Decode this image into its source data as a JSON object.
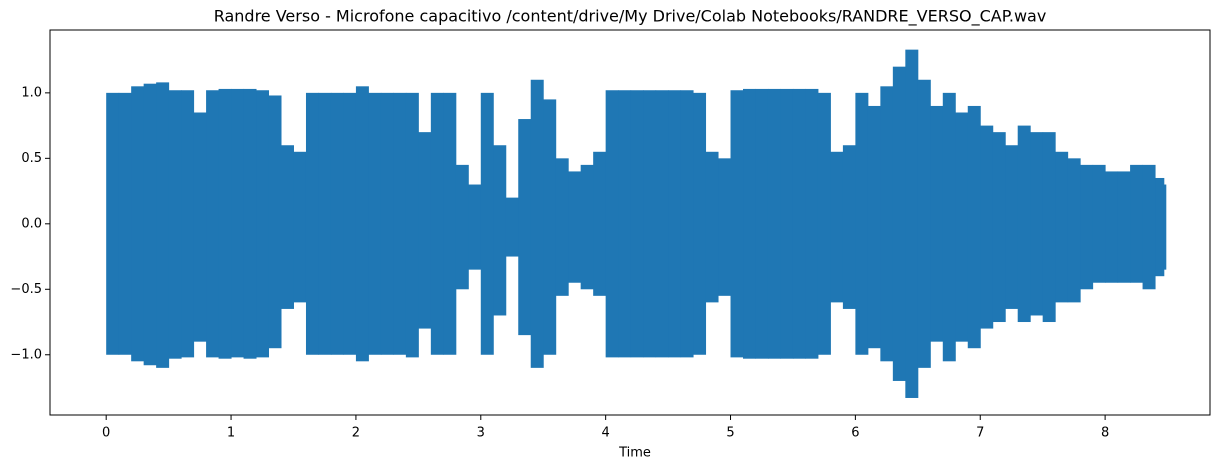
{
  "chart_data": {
    "type": "waveform",
    "title": "Randre Verso - Microfone capacitivo /content/drive/My Drive/Colab Notebooks/RANDRE_VERSO_CAP.wav",
    "x_label": "Time",
    "color": "#1f77b4",
    "grid": false,
    "x": [
      0,
      0.1,
      0.2,
      0.3,
      0.4,
      0.5,
      0.6,
      0.7,
      0.8,
      0.9,
      1.0,
      1.1,
      1.2,
      1.3,
      1.4,
      1.5,
      1.6,
      1.7,
      1.8,
      1.9,
      2.0,
      2.1,
      2.2,
      2.3,
      2.4,
      2.5,
      2.6,
      2.7,
      2.8,
      2.9,
      3.0,
      3.1,
      3.2,
      3.3,
      3.4,
      3.5,
      3.6,
      3.7,
      3.8,
      3.9,
      4.0,
      4.1,
      4.2,
      4.3,
      4.4,
      4.5,
      4.6,
      4.7,
      4.8,
      4.9,
      5.0,
      5.1,
      5.2,
      5.3,
      5.4,
      5.5,
      5.6,
      5.7,
      5.8,
      5.9,
      6.0,
      6.1,
      6.2,
      6.3,
      6.4,
      6.5,
      6.6,
      6.7,
      6.8,
      6.9,
      7.0,
      7.1,
      7.2,
      7.3,
      7.4,
      7.5,
      7.6,
      7.7,
      7.8,
      7.9,
      8.0,
      8.1,
      8.2,
      8.3,
      8.4,
      8.47
    ],
    "upper": [
      1.0,
      1.0,
      1.05,
      1.07,
      1.08,
      1.02,
      1.02,
      0.85,
      1.02,
      1.03,
      1.03,
      1.03,
      1.02,
      0.98,
      0.6,
      0.55,
      1.0,
      1.0,
      1.0,
      1.0,
      1.05,
      1.0,
      1.0,
      1.0,
      1.0,
      0.7,
      1.0,
      1.0,
      0.45,
      0.3,
      1.0,
      0.6,
      0.2,
      0.8,
      1.1,
      0.95,
      0.5,
      0.4,
      0.45,
      0.55,
      1.02,
      1.02,
      1.02,
      1.02,
      1.02,
      1.02,
      1.02,
      1.0,
      0.55,
      0.5,
      1.02,
      1.03,
      1.03,
      1.03,
      1.03,
      1.03,
      1.03,
      1.0,
      0.55,
      0.6,
      1.0,
      0.9,
      1.05,
      1.2,
      1.33,
      1.1,
      0.9,
      1.0,
      0.85,
      0.9,
      0.75,
      0.7,
      0.6,
      0.75,
      0.7,
      0.7,
      0.55,
      0.5,
      0.45,
      0.45,
      0.4,
      0.4,
      0.45,
      0.45,
      0.35,
      0.3
    ],
    "lower": [
      -1.0,
      -1.0,
      -1.05,
      -1.08,
      -1.1,
      -1.03,
      -1.02,
      -0.9,
      -1.02,
      -1.03,
      -1.02,
      -1.03,
      -1.02,
      -0.95,
      -0.65,
      -0.6,
      -1.0,
      -1.0,
      -1.0,
      -1.0,
      -1.05,
      -1.0,
      -1.0,
      -1.0,
      -1.02,
      -0.8,
      -1.0,
      -1.0,
      -0.5,
      -0.35,
      -1.0,
      -0.7,
      -0.25,
      -0.85,
      -1.1,
      -1.0,
      -0.55,
      -0.45,
      -0.5,
      -0.55,
      -1.02,
      -1.02,
      -1.02,
      -1.02,
      -1.02,
      -1.02,
      -1.02,
      -1.0,
      -0.6,
      -0.55,
      -1.02,
      -1.03,
      -1.03,
      -1.03,
      -1.03,
      -1.03,
      -1.03,
      -1.0,
      -0.6,
      -0.65,
      -1.0,
      -0.95,
      -1.05,
      -1.2,
      -1.33,
      -1.1,
      -0.9,
      -1.05,
      -0.9,
      -0.95,
      -0.8,
      -0.75,
      -0.65,
      -0.75,
      -0.7,
      -0.75,
      -0.6,
      -0.6,
      -0.5,
      -0.45,
      -0.45,
      -0.45,
      -0.45,
      -0.5,
      -0.4,
      -0.35
    ],
    "xlim": [
      -0.45,
      8.84
    ],
    "ylim": [
      -1.46,
      1.48
    ],
    "xticks": [
      0,
      1,
      2,
      3,
      4,
      5,
      6,
      7,
      8
    ],
    "yticks": [
      {
        "value": -1,
        "label": "−1.0"
      },
      {
        "value": -0.5,
        "label": "−0.5"
      },
      {
        "value": 0,
        "label": "0.0"
      },
      0.5,
      {
        "value": 1,
        "label": "1.0"
      }
    ]
  }
}
